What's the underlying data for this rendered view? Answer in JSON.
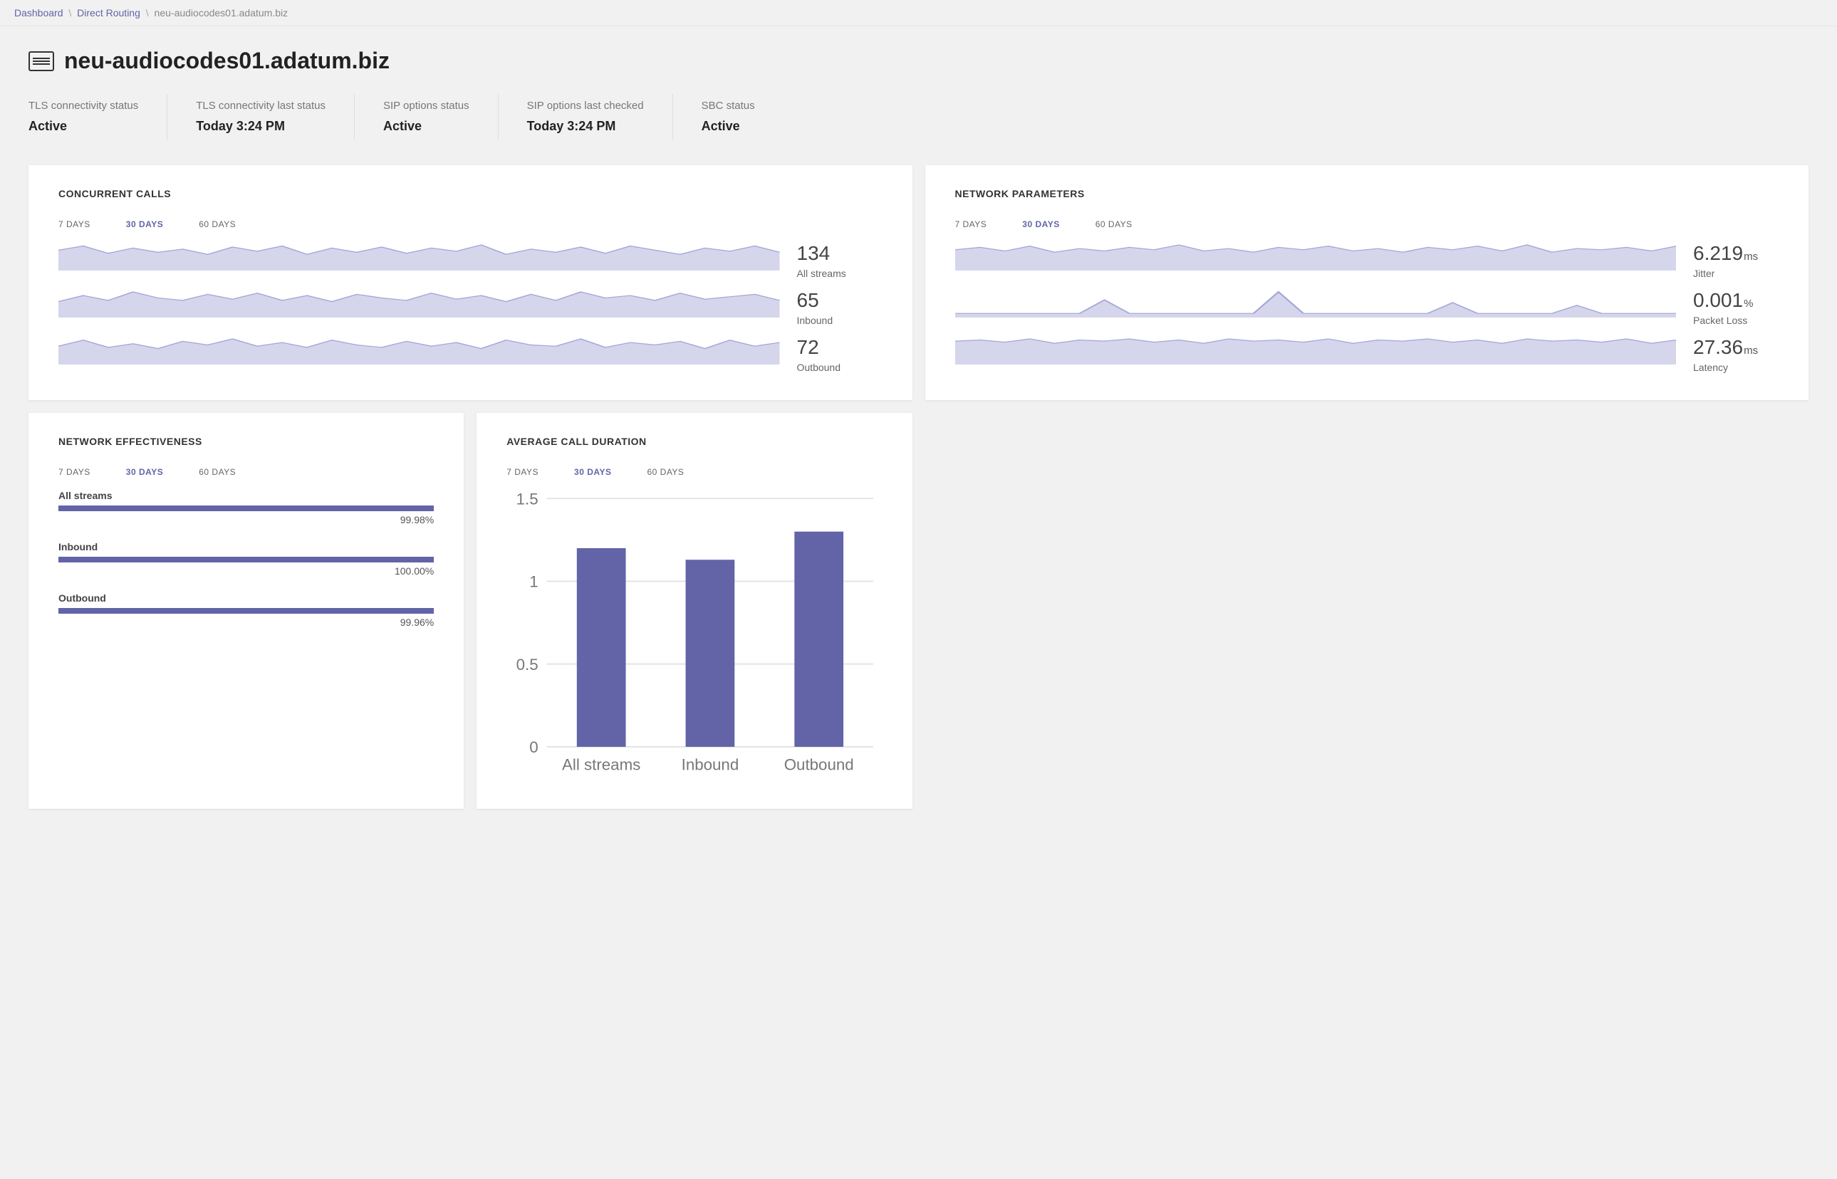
{
  "breadcrumb": {
    "items": [
      {
        "label": "Dashboard",
        "link": true
      },
      {
        "label": "Direct Routing",
        "link": true
      },
      {
        "label": "neu-audiocodes01.adatum.biz",
        "link": false
      }
    ],
    "separator": "\\"
  },
  "page_title": "neu-audiocodes01.adatum.biz",
  "status": [
    {
      "label": "TLS connectivity status",
      "value": "Active"
    },
    {
      "label": "TLS connectivity last status",
      "value": "Today 3:24 PM"
    },
    {
      "label": "SIP options status",
      "value": "Active"
    },
    {
      "label": "SIP options last checked",
      "value": "Today 3:24 PM"
    },
    {
      "label": "SBC status",
      "value": "Active"
    }
  ],
  "time_tabs": {
    "options": [
      "7 DAYS",
      "30 DAYS",
      "60 DAYS"
    ],
    "active_index": 1
  },
  "colors": {
    "accent": "#6264a7",
    "spark_fill": "#d5d6eb",
    "spark_stroke": "#a4a6d9",
    "card_bg": "#ffffff",
    "page_bg": "#f1f1f1",
    "grid_line": "#e5e5e5",
    "axis_text": "#777"
  },
  "concurrent_calls": {
    "title": "CONCURRENT CALLS",
    "series": [
      {
        "value": "134",
        "unit": "",
        "label": "All streams",
        "points": [
          18,
          22,
          15,
          20,
          16,
          19,
          14,
          21,
          17,
          22,
          14,
          20,
          16,
          21,
          15,
          20,
          17,
          23,
          14,
          19,
          16,
          21,
          15,
          22,
          18,
          14,
          20,
          17,
          22,
          16
        ]
      },
      {
        "value": "65",
        "unit": "",
        "label": "Inbound",
        "points": [
          12,
          17,
          13,
          20,
          15,
          13,
          18,
          14,
          19,
          13,
          17,
          12,
          18,
          15,
          13,
          19,
          14,
          17,
          12,
          18,
          13,
          20,
          15,
          17,
          13,
          19,
          14,
          16,
          18,
          13
        ]
      },
      {
        "value": "72",
        "unit": "",
        "label": "Outbound",
        "points": [
          14,
          19,
          13,
          16,
          12,
          18,
          15,
          20,
          14,
          17,
          13,
          19,
          15,
          13,
          18,
          14,
          17,
          12,
          19,
          15,
          14,
          20,
          13,
          17,
          15,
          18,
          12,
          19,
          14,
          17
        ]
      }
    ]
  },
  "network_params": {
    "title": "NETWORK PARAMETERS",
    "series": [
      {
        "value": "6.219",
        "unit": "ms",
        "label": "Jitter",
        "points": [
          16,
          18,
          15,
          19,
          14,
          17,
          15,
          18,
          16,
          20,
          15,
          17,
          14,
          18,
          16,
          19,
          15,
          17,
          14,
          18,
          16,
          19,
          15,
          20,
          14,
          17,
          16,
          18,
          15,
          19
        ]
      },
      {
        "value": "0.001",
        "unit": "%",
        "label": "Packet Loss",
        "points": [
          2,
          2,
          2,
          2,
          2,
          2,
          12,
          2,
          2,
          2,
          2,
          2,
          2,
          18,
          2,
          2,
          2,
          2,
          2,
          2,
          10,
          2,
          2,
          2,
          2,
          8,
          2,
          2,
          2,
          2
        ]
      },
      {
        "value": "27.36",
        "unit": "ms",
        "label": "Latency",
        "points": [
          20,
          21,
          19,
          22,
          18,
          21,
          20,
          22,
          19,
          21,
          18,
          22,
          20,
          21,
          19,
          22,
          18,
          21,
          20,
          22,
          19,
          21,
          18,
          22,
          20,
          21,
          19,
          22,
          18,
          21
        ]
      }
    ]
  },
  "network_effectiveness": {
    "title": "NETWORK EFFECTIVENESS",
    "items": [
      {
        "label": "All streams",
        "percent": 99.98,
        "display": "99.98%"
      },
      {
        "label": "Inbound",
        "percent": 100.0,
        "display": "100.00%"
      },
      {
        "label": "Outbound",
        "percent": 99.96,
        "display": "99.96%"
      }
    ]
  },
  "avg_call_duration": {
    "title": "AVERAGE CALL DURATION",
    "type": "bar",
    "y_ticks": [
      0,
      0.5,
      1,
      1.5
    ],
    "ylim": [
      0,
      1.5
    ],
    "categories": [
      "All streams",
      "Inbound",
      "Outbound"
    ],
    "values": [
      1.2,
      1.13,
      1.3
    ],
    "bar_color": "#6264a7",
    "bar_width_ratio": 0.45,
    "axis_fontsize": 11
  }
}
